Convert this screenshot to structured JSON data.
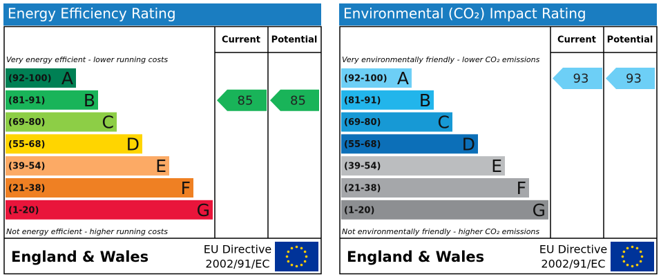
{
  "panels": [
    {
      "title": "Energy Efficiency Rating",
      "headers": {
        "current": "Current",
        "potential": "Potential"
      },
      "top_note": "Very energy efficient - lower running costs",
      "bottom_note": "Not energy efficient - higher running costs",
      "bands": [
        {
          "range": "(92-100)",
          "letter": "A",
          "color": "#008054"
        },
        {
          "range": "(81-91)",
          "letter": "B",
          "color": "#19b459"
        },
        {
          "range": "(69-80)",
          "letter": "C",
          "color": "#8dce46"
        },
        {
          "range": "(55-68)",
          "letter": "D",
          "color": "#ffd500"
        },
        {
          "range": "(39-54)",
          "letter": "E",
          "color": "#fcaa65"
        },
        {
          "range": "(21-38)",
          "letter": "F",
          "color": "#ef8023"
        },
        {
          "range": "(1-20)",
          "letter": "G",
          "color": "#e9153b"
        }
      ],
      "current": 85,
      "potential": 85,
      "footer": {
        "region": "England & Wales",
        "directive": [
          "EU Directive",
          "2002/91/EC"
        ]
      }
    },
    {
      "title": "Environmental (CO₂) Impact Rating",
      "headers": {
        "current": "Current",
        "potential": "Potential"
      },
      "top_note": "Very environmentally friendly - lower CO₂ emissions",
      "bottom_note": "Not environmentally friendly - higher CO₂ emissions",
      "bands": [
        {
          "range": "(92-100)",
          "letter": "A",
          "color": "#6dcff6"
        },
        {
          "range": "(81-91)",
          "letter": "B",
          "color": "#22b5eb"
        },
        {
          "range": "(69-80)",
          "letter": "C",
          "color": "#1799d5"
        },
        {
          "range": "(55-68)",
          "letter": "D",
          "color": "#0c6fb8"
        },
        {
          "range": "(39-54)",
          "letter": "E",
          "color": "#bbbdbf"
        },
        {
          "range": "(21-38)",
          "letter": "F",
          "color": "#a5a7aa"
        },
        {
          "range": "(1-20)",
          "letter": "G",
          "color": "#8d8f92"
        }
      ],
      "current": 93,
      "potential": 93,
      "footer": {
        "region": "England & Wales",
        "directive": [
          "EU Directive",
          "2002/91/EC"
        ]
      }
    }
  ]
}
